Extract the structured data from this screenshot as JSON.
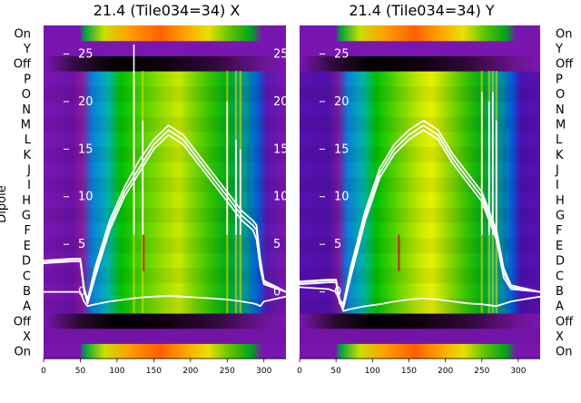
{
  "chart_data": [
    {
      "type": "heatmap",
      "title": "21.4 (Tile034=34) X",
      "ylabel": "Dipole",
      "xlim": [
        0,
        330
      ],
      "x_ticks": [
        0,
        50,
        100,
        150,
        200,
        250,
        300
      ],
      "y_range": [
        -7,
        28
      ],
      "y_ticks": [
        0,
        5,
        10,
        15,
        20,
        25
      ],
      "row_labels": [
        "On",
        "X",
        "Off",
        "A",
        "B",
        "C",
        "D",
        "E",
        "F",
        "G",
        "H",
        "I",
        "J",
        "K",
        "L",
        "M",
        "N",
        "O",
        "P",
        "Off",
        "Y",
        "On"
      ],
      "series": [
        {
          "x": [
            0,
            40,
            50,
            55,
            60,
            70,
            90,
            110,
            130,
            150,
            170,
            190,
            210,
            230,
            250,
            270,
            285,
            290,
            295,
            300,
            330
          ],
          "y": [
            3.3,
            3.5,
            3.5,
            0.5,
            -1,
            2,
            7,
            10.5,
            13,
            15.5,
            17,
            16,
            14,
            12,
            10,
            8,
            7,
            6.5,
            3,
            1,
            0
          ]
        },
        {
          "x": [
            0,
            40,
            50,
            55,
            60,
            70,
            90,
            110,
            130,
            150,
            170,
            190,
            210,
            230,
            250,
            270,
            285,
            290,
            295,
            300,
            330
          ],
          "y": [
            3,
            3.2,
            3.2,
            0.2,
            -1.2,
            1.5,
            6.5,
            10,
            12.5,
            15,
            16.5,
            15.5,
            13.5,
            11.5,
            9.5,
            7.5,
            6.5,
            5.5,
            2.5,
            0.8,
            0
          ]
        },
        {
          "x": [
            0,
            40,
            50,
            55,
            60,
            70,
            90,
            110,
            130,
            150,
            170,
            190,
            210,
            230,
            250,
            270,
            285,
            290,
            295,
            300,
            330
          ],
          "y": [
            3.1,
            3.4,
            3.4,
            0.4,
            -0.8,
            2.5,
            7.5,
            11,
            13.8,
            16,
            17.5,
            16.5,
            14.5,
            12.5,
            10.5,
            8.5,
            7.5,
            7,
            3.5,
            1.2,
            0
          ]
        },
        {
          "x": [
            0,
            40,
            50,
            55,
            60,
            70,
            90,
            110,
            130,
            150,
            170,
            190,
            210,
            230,
            250,
            270,
            285,
            290,
            295,
            300,
            330
          ],
          "y": [
            0,
            0,
            0,
            -1,
            -1.5,
            -1.3,
            -1,
            -0.8,
            -0.6,
            -0.5,
            -0.4,
            -0.5,
            -0.6,
            -0.7,
            -0.8,
            -1,
            -1.2,
            -1.3,
            -1.5,
            -1,
            -0.5
          ]
        }
      ],
      "spike_x": [
        123,
        135,
        250,
        262,
        268
      ]
    },
    {
      "type": "heatmap",
      "title": "21.4 (Tile034=34) Y",
      "xlim": [
        0,
        330
      ],
      "x_ticks": [
        0,
        50,
        100,
        150,
        200,
        250,
        300
      ],
      "y_range": [
        -7,
        28
      ],
      "y_ticks": [
        0,
        5,
        10,
        15,
        20,
        25
      ],
      "row_labels": [
        "On",
        "X",
        "Off",
        "A",
        "B",
        "C",
        "D",
        "E",
        "F",
        "G",
        "H",
        "I",
        "J",
        "K",
        "L",
        "M",
        "N",
        "O",
        "P",
        "Off",
        "Y",
        "On"
      ],
      "series": [
        {
          "x": [
            0,
            40,
            50,
            55,
            60,
            70,
            90,
            110,
            130,
            150,
            170,
            190,
            210,
            230,
            250,
            260,
            270,
            280,
            290,
            330
          ],
          "y": [
            1,
            1.2,
            1.2,
            -1,
            -1.5,
            2,
            8,
            12.5,
            15,
            16.5,
            17.5,
            16.5,
            14,
            12,
            10,
            8,
            6,
            2,
            0.5,
            0
          ]
        },
        {
          "x": [
            0,
            40,
            50,
            55,
            60,
            70,
            90,
            110,
            130,
            150,
            170,
            190,
            210,
            230,
            250,
            260,
            270,
            280,
            290,
            330
          ],
          "y": [
            0.8,
            1,
            1,
            -1.2,
            -1.7,
            1.5,
            7.5,
            12,
            14.5,
            16,
            17,
            16,
            13.5,
            11.5,
            9.5,
            7.5,
            5.5,
            1.5,
            0.3,
            0
          ]
        },
        {
          "x": [
            0,
            40,
            50,
            55,
            60,
            70,
            90,
            110,
            130,
            150,
            170,
            190,
            210,
            230,
            250,
            260,
            270,
            280,
            290,
            330
          ],
          "y": [
            1.1,
            1.3,
            1.3,
            -0.8,
            -1.3,
            2.5,
            8.5,
            13,
            15.5,
            17,
            18,
            17,
            14.5,
            12.5,
            10.5,
            8.5,
            6.5,
            2.5,
            0.7,
            0
          ]
        },
        {
          "x": [
            0,
            40,
            50,
            55,
            60,
            70,
            90,
            110,
            130,
            150,
            170,
            190,
            210,
            230,
            250,
            270,
            290,
            330
          ],
          "y": [
            0.5,
            0.3,
            0,
            -1,
            -2,
            -1.8,
            -1.5,
            -1.3,
            -1,
            -0.8,
            -0.7,
            -0.8,
            -1,
            -1.2,
            -1.3,
            -1.5,
            -1,
            -0.5
          ]
        }
      ],
      "spike_x": [
        250,
        260,
        265,
        270
      ]
    }
  ]
}
